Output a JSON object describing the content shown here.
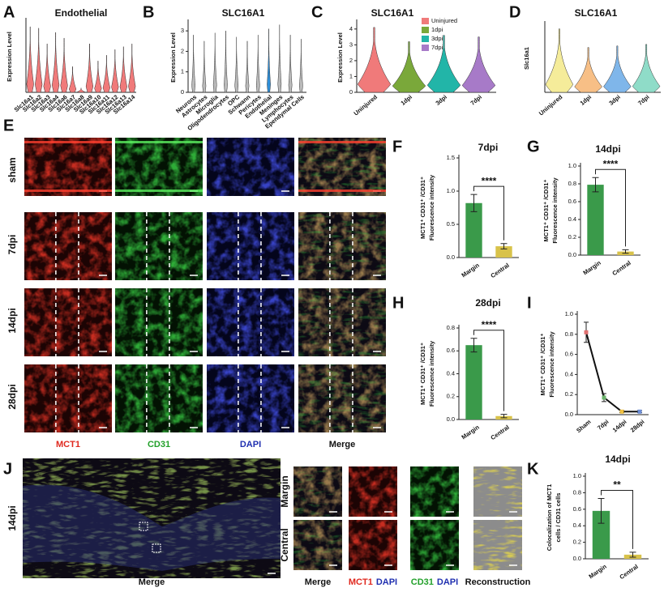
{
  "panel_labels": [
    "A",
    "B",
    "C",
    "D",
    "E",
    "F",
    "G",
    "H",
    "I",
    "J",
    "K"
  ],
  "chart_data": [
    {
      "type": "violin",
      "title": "Endothelial",
      "y_label": [
        "Expression Level"
      ],
      "categories": [
        "Slc16a1",
        "Slc16a2",
        "Slc16a3",
        "Slc16a4",
        "Slc16a6",
        "Slc16a7",
        "Slc16a8",
        "Slc16a9",
        "Slc16a10",
        "Slc16a11",
        "Slc16a12",
        "Slc16a13",
        "Slc16a14"
      ],
      "values": [
        4.6,
        4.5,
        3.4,
        4.2,
        3.8,
        1.8,
        0.3,
        3.4,
        2.2,
        2.6,
        3.0,
        3.2,
        3.4
      ],
      "colors": [
        "#f07a7a",
        "#f07a7a",
        "#f07a7a",
        "#f07a7a",
        "#f07a7a",
        "#f07a7a",
        "#f07a7a",
        "#f07a7a",
        "#f07a7a",
        "#f07a7a",
        "#f07a7a",
        "#f07a7a",
        "#f07a7a"
      ],
      "ylim": [
        0,
        5
      ]
    },
    {
      "type": "violin",
      "title": "SLC16A1",
      "y_label": [
        "Expression Level"
      ],
      "categories": [
        "Neurons",
        "Astrocytes",
        "Microglia",
        "Oligodendrocytes",
        "OPC",
        "Schwann",
        "Pericytes",
        "Endothelial",
        "Meninges",
        "Lymphocytes",
        "Ependymal Cells"
      ],
      "values": [
        2.8,
        2.5,
        2.9,
        3.0,
        2.7,
        2.5,
        2.8,
        3.1,
        3.3,
        2.8,
        2.6
      ],
      "colors": [
        "#bbbbbb",
        "#bbbbbb",
        "#bbbbbb",
        "#bbbbbb",
        "#bbbbbb",
        "#bbbbbb",
        "#bbbbbb",
        "#2f8fd8",
        "#bbbbbb",
        "#bbbbbb",
        "#bbbbbb"
      ],
      "ylim": [
        0,
        3.4
      ],
      "yticks": [
        0,
        1,
        2,
        3
      ]
    },
    {
      "type": "violin",
      "title": "SLC16A1",
      "y_label": [
        "Expression Level"
      ],
      "categories": [
        "Uninjured",
        "1dpi",
        "3dpi",
        "7dpi"
      ],
      "values": [
        4.1,
        3.2,
        3.6,
        3.5
      ],
      "colors": [
        "#f07a7a",
        "#7aa83a",
        "#22b5a8",
        "#a77ac8"
      ],
      "ylim": [
        0,
        4.4
      ],
      "yticks": [
        0,
        1,
        2,
        3,
        4
      ],
      "legend": "top-right"
    },
    {
      "type": "violin",
      "title": "SLC16A1",
      "y_label": [
        "Slc16a1"
      ],
      "categories": [
        "Uninjured",
        "1dpi",
        "3dpi",
        "7dpi"
      ],
      "values": [
        4.1,
        2.9,
        3.0,
        3.1
      ],
      "colors": [
        "#f5ec9a",
        "#f7bf86",
        "#7fb6ea",
        "#8fdcc8"
      ],
      "ylim": [
        0,
        4.4
      ]
    },
    {
      "type": "bar",
      "title": "7dpi",
      "y_label": [
        "MCT1⁺ CD31⁺ /CD31⁺",
        "Fluorescence intensity"
      ],
      "categories": [
        "Margin",
        "Central"
      ],
      "values": [
        0.82,
        0.17
      ],
      "errors": [
        0.13,
        0.04
      ],
      "colors": [
        "#3a9a4a",
        "#d8c24a"
      ],
      "significance": "****",
      "ylim": [
        0,
        1.5
      ],
      "yticks": [
        {
          "value": 0,
          "label": "0.0"
        },
        {
          "value": 0.5,
          "label": "0.5"
        },
        {
          "value": 1,
          "label": "1.0"
        },
        {
          "value": 1.5,
          "label": "1.5"
        }
      ]
    },
    {
      "type": "bar",
      "title": "14dpi",
      "y_label": [
        "MCT1⁺ CD31⁺ /CD31⁺",
        "Fluorescence intensity"
      ],
      "categories": [
        "Margin",
        "Central"
      ],
      "values": [
        0.79,
        0.04
      ],
      "errors": [
        0.08,
        0.02
      ],
      "colors": [
        "#3a9a4a",
        "#d8c24a"
      ],
      "significance": "****",
      "ylim": [
        0,
        1.0
      ],
      "yticks": [
        {
          "value": 0,
          "label": "0.0"
        },
        0.2,
        0.4,
        0.6,
        0.8,
        {
          "value": 1,
          "label": "1.0"
        }
      ]
    },
    {
      "type": "bar",
      "title": "28dpi",
      "y_label": [
        "MCT1⁺ CD31⁺ /CD31⁺",
        "Fluorescence intensity"
      ],
      "categories": [
        "Margin",
        "Central"
      ],
      "values": [
        0.65,
        0.03
      ],
      "errors": [
        0.06,
        0.015
      ],
      "colors": [
        "#3a9a4a",
        "#d8c24a"
      ],
      "significance": "****",
      "ylim": [
        0,
        0.8
      ],
      "yticks": [
        {
          "value": 0,
          "label": "0.0"
        },
        0.2,
        0.4,
        0.6,
        0.8
      ]
    },
    {
      "type": "line",
      "y_label": [
        "MCT1⁺ CD31⁺ /CD31⁺",
        "Fluorescence intensity"
      ],
      "categories": [
        "Sham",
        "7dpi",
        "14dpi",
        "28dpi"
      ],
      "values": [
        0.82,
        0.17,
        0.03,
        0.03
      ],
      "errors": [
        0.1,
        0.04,
        0.01,
        0.01
      ],
      "color": "#111111",
      "ylim": [
        0,
        1.0
      ],
      "yticks": [
        {
          "value": 0,
          "label": "0.0"
        },
        0.2,
        0.4,
        0.6,
        0.8,
        {
          "value": 1,
          "label": "1.0"
        }
      ]
    },
    {
      "type": "bar",
      "title": "14dpi",
      "y_label": [
        "Colocalization of MCT1",
        "cells / CD31 cells"
      ],
      "categories": [
        "Margin",
        "Central"
      ],
      "values": [
        0.58,
        0.05
      ],
      "errors": [
        0.15,
        0.03
      ],
      "colors": [
        "#3a9a4a",
        "#d8c24a"
      ],
      "significance": "**",
      "ylim": [
        0,
        1.0
      ],
      "yticks": [
        {
          "value": 0,
          "label": "0.0"
        },
        0.2,
        0.4,
        0.6,
        0.8,
        {
          "value": 1,
          "label": "1.0"
        }
      ]
    }
  ],
  "panel_E": {
    "rows": [
      "sham",
      "7dpi",
      "14dpi",
      "28dpi"
    ],
    "columns": [
      "MCT1",
      "CD31",
      "DAPI",
      "Merge"
    ]
  },
  "panel_J": {
    "timepoint": "14dpi",
    "overview_label": "Merge",
    "rows": [
      "Margin",
      "Central"
    ],
    "columns": [
      [
        "Merge"
      ],
      [
        "MCT1",
        "DAPI"
      ],
      [
        "CD31",
        "DAPI"
      ],
      [
        "Reconstruction"
      ]
    ]
  }
}
